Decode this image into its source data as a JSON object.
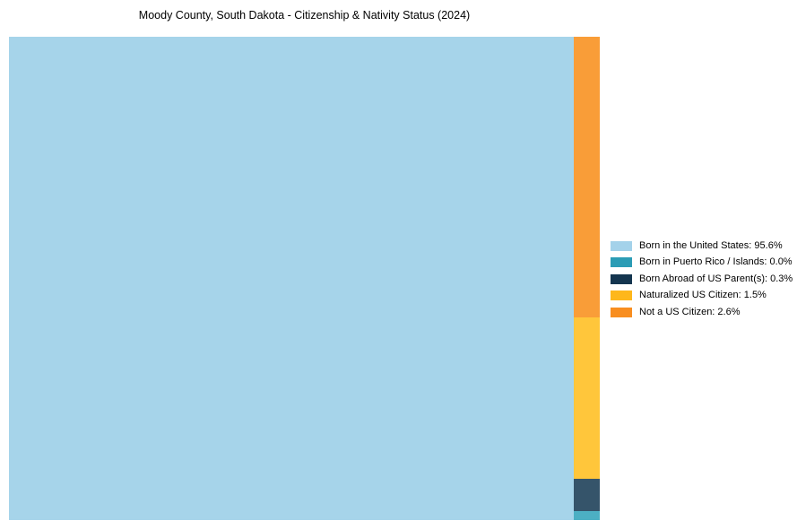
{
  "title": "Moody County, South Dakota - Citizenship & Nativity Status (2024)",
  "chart_data": {
    "type": "treemap",
    "title": "Moody County, South Dakota - Citizenship & Nativity Status (2024)",
    "unit": "%",
    "legend_position": "right-middle",
    "series": [
      {
        "name": "Born in the United States",
        "value": 95.6,
        "block_color": "#A6D4EA",
        "legend_color": "#A4D2EA"
      },
      {
        "name": "Born in Puerto Rico / Islands",
        "value": 0.0,
        "block_color": "#4CAFC3",
        "legend_color": "#2B9CB5"
      },
      {
        "name": "Born Abroad of US Parent(s)",
        "value": 0.3,
        "block_color": "#35546A",
        "legend_color": "#14354F"
      },
      {
        "name": "Naturalized US Citizen",
        "value": 1.5,
        "block_color": "#FFC63B",
        "legend_color": "#FEB71B"
      },
      {
        "name": "Not a US Citizen",
        "value": 2.6,
        "block_color": "#F99D38",
        "legend_color": "#F88E20"
      }
    ],
    "column_order_top_to_bottom": [
      "Not a US Citizen",
      "Naturalized US Citizen",
      "Born Abroad of US Parent(s)",
      "Born in Puerto Rico / Islands"
    ]
  },
  "legend": {
    "items": [
      {
        "label": "Born in the United States: 95.6%"
      },
      {
        "label": "Born in Puerto Rico / Islands: 0.0%"
      },
      {
        "label": "Born Abroad of US Parent(s): 0.3%"
      },
      {
        "label": "Naturalized US Citizen: 1.5%"
      },
      {
        "label": "Not a US Citizen: 2.6%"
      }
    ]
  }
}
